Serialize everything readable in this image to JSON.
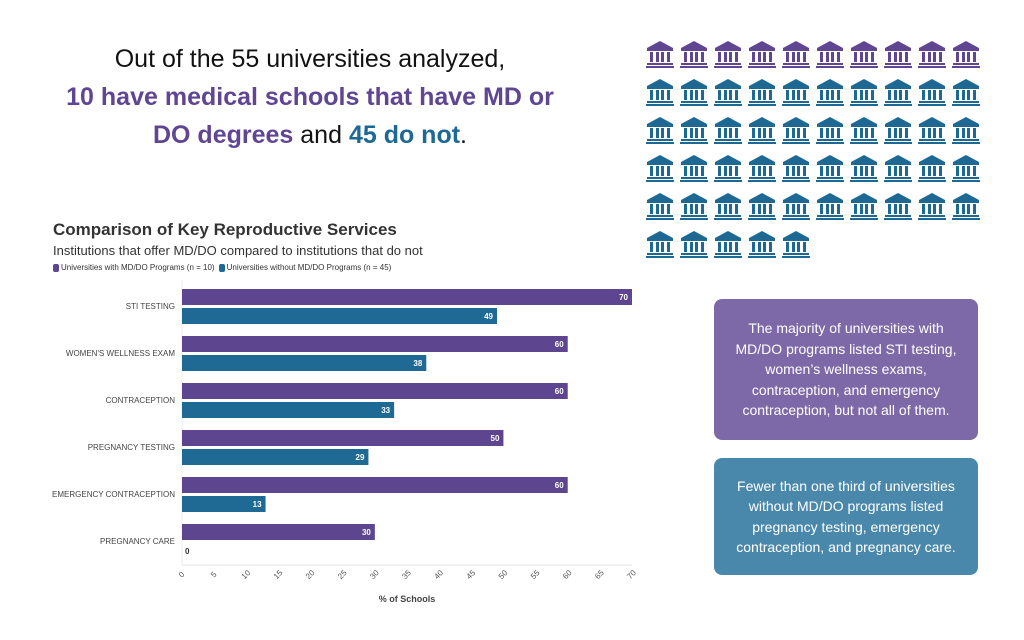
{
  "headline": {
    "line1": "Out of the 55 universities analyzed,",
    "purple": "10 have medical schools that have MD or DO degrees",
    "mid": " and ",
    "blue": "45 do not",
    "end": "."
  },
  "icon_grid": {
    "icon": "university-building-icon",
    "total": 55,
    "with_md_do": 10,
    "without_md_do": 45,
    "colors": {
      "with": "#5f4592",
      "without": "#1d6994"
    }
  },
  "chart_data": {
    "type": "bar",
    "orientation": "horizontal",
    "title": "Comparison of Key Reproductive Services",
    "subtitle": "Institutions that offer MD/DO compared to institutions that do not",
    "xlabel": "% of Schools",
    "xlim": [
      0,
      70
    ],
    "xticks": [
      0,
      5,
      10,
      15,
      20,
      25,
      30,
      35,
      40,
      45,
      50,
      55,
      60,
      65,
      70
    ],
    "legend_position": "top-left",
    "categories": [
      "STI TESTING",
      "WOMEN'S WELLNESS EXAM",
      "CONTRACEPTION",
      "PREGNANCY TESTING",
      "EMERGENCY CONTRACEPTION",
      "PREGNANCY CARE"
    ],
    "series": [
      {
        "name": "Universities with MD/DO Programs (n = 10)",
        "color": "#5e4590",
        "values": [
          70,
          60,
          60,
          50,
          60,
          30
        ]
      },
      {
        "name": "Universities without MD/DO Programs (n = 45)",
        "color": "#1f6a94",
        "values": [
          49,
          38,
          33,
          29,
          13,
          0
        ]
      }
    ]
  },
  "callouts": [
    "The majority of universities with MD/DO programs listed STI testing, women’s wellness exams, contraception, and emergency contraception, but not all of them.",
    "Fewer than one third of universities without MD/DO programs listed pregnancy testing, emergency contraception, and pregnancy care."
  ]
}
